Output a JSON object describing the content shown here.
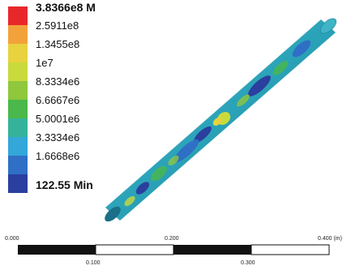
{
  "legend": {
    "entries": [
      {
        "label": "3.8366e8 M",
        "color": "#e8272b",
        "bold": true
      },
      {
        "label": "2.5911e8",
        "color": "#f2a23a",
        "bold": false
      },
      {
        "label": "1.3455e8",
        "color": "#e8d23e",
        "bold": false
      },
      {
        "label": "1e7",
        "color": "#c9da3c",
        "bold": false
      },
      {
        "label": "8.3334e6",
        "color": "#8fc73d",
        "bold": false
      },
      {
        "label": "6.6667e6",
        "color": "#4ab84a",
        "bold": false
      },
      {
        "label": "5.0001e6",
        "color": "#35b39a",
        "bold": false
      },
      {
        "label": "3.3334e6",
        "color": "#33a7d8",
        "bold": false
      },
      {
        "label": "1.6668e6",
        "color": "#2f6fc6",
        "bold": false
      },
      {
        "label": "122.55 Min",
        "color": "#2a3f9e",
        "bold": true
      }
    ]
  },
  "model": {
    "name": "stress-contour-rod",
    "base_color": "#2aa2b8"
  },
  "scale_bar": {
    "top_labels": [
      "0.000",
      "0.200",
      "0.400 (m)"
    ],
    "bottom_labels": [
      "0.100",
      "0.300"
    ]
  }
}
